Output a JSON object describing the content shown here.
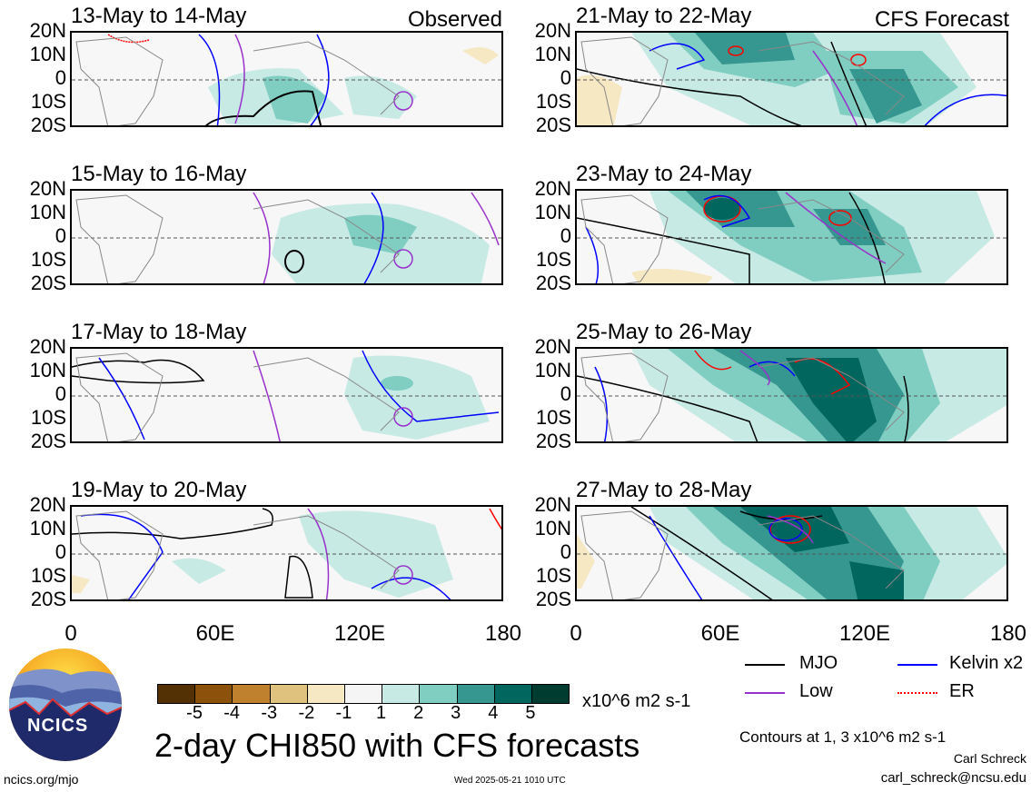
{
  "panels_left": [
    {
      "title": "13-May to 14-May",
      "label": "Observed"
    },
    {
      "title": "15-May to 16-May",
      "label": ""
    },
    {
      "title": "17-May to 18-May",
      "label": ""
    },
    {
      "title": "19-May to 20-May",
      "label": ""
    }
  ],
  "panels_right": [
    {
      "title": "21-May to 22-May",
      "label": "CFS Forecast"
    },
    {
      "title": "23-May to 24-May",
      "label": ""
    },
    {
      "title": "25-May to 26-May",
      "label": ""
    },
    {
      "title": "27-May to 28-May",
      "label": ""
    }
  ],
  "lat_labels": [
    "20N",
    "10N",
    "0",
    "10S",
    "20S"
  ],
  "lon_labels": [
    "0",
    "60E",
    "120E",
    "180"
  ],
  "colorbar": {
    "tick_labels": [
      "-5",
      "-4",
      "-3",
      "-2",
      "-1",
      "1",
      "2",
      "3",
      "4",
      "5"
    ],
    "colors": [
      "#543005",
      "#8c510a",
      "#bf812d",
      "#dfc27d",
      "#f6e8c3",
      "#f5f5f5",
      "#c7eae5",
      "#80cdc1",
      "#35978f",
      "#01665e",
      "#003c30"
    ],
    "units": "x10^6 m2 s-1"
  },
  "legend": [
    {
      "label": "MJO",
      "color": "#000000"
    },
    {
      "label": "Kelvin x2",
      "color": "#0000ff"
    },
    {
      "label": "Low",
      "color": "#9932cc"
    },
    {
      "label": "ER",
      "color": "#ff0000"
    }
  ],
  "main_title": "2-day CHI850 with CFS forecasts",
  "contours_note": "Contours at 1, 3 x10^6 m2 s-1",
  "author": "Carl Schreck",
  "email": "carl_schreck@ncsu.edu",
  "website": "ncics.org/mjo",
  "timestamp": "Wed 2025-05-21 1010 UTC",
  "logo_text": "NCICS"
}
